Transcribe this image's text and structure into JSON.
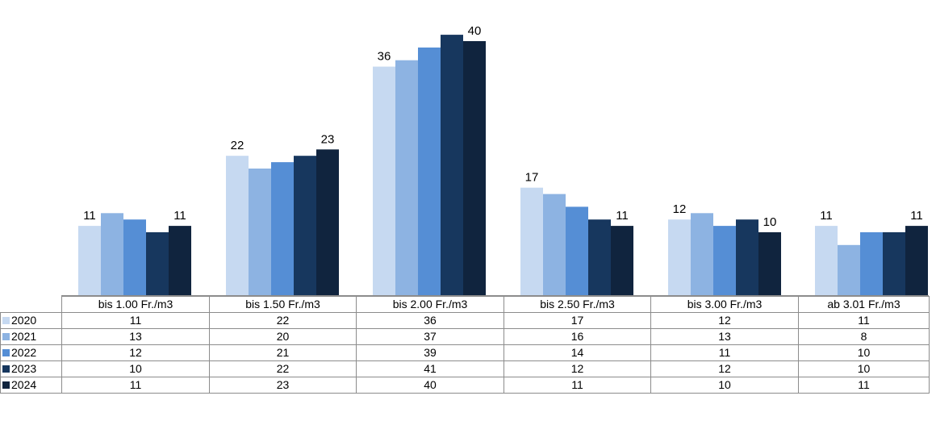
{
  "chart_data": {
    "type": "bar",
    "categories": [
      "bis 1.00 Fr./m3",
      "bis 1.50 Fr./m3",
      "bis 2.00 Fr./m3",
      "bis 2.50 Fr./m3",
      "bis 3.00 Fr./m3",
      "ab 3.01 Fr./m3"
    ],
    "series": [
      {
        "name": "2020",
        "color": "#c6d9f1",
        "values": [
          11,
          22,
          36,
          17,
          12,
          11
        ]
      },
      {
        "name": "2021",
        "color": "#8db3e2",
        "values": [
          13,
          20,
          37,
          16,
          13,
          8
        ]
      },
      {
        "name": "2022",
        "color": "#558ed5",
        "values": [
          12,
          21,
          39,
          14,
          11,
          10
        ]
      },
      {
        "name": "2023",
        "color": "#17375e",
        "values": [
          10,
          22,
          41,
          12,
          12,
          10
        ]
      },
      {
        "name": "2024",
        "color": "#10243e",
        "values": [
          11,
          23,
          40,
          11,
          10,
          11
        ]
      }
    ],
    "data_labels": "first and last series",
    "grid": false,
    "legend": "data table row headers",
    "ylim": [
      0,
      45
    ]
  }
}
